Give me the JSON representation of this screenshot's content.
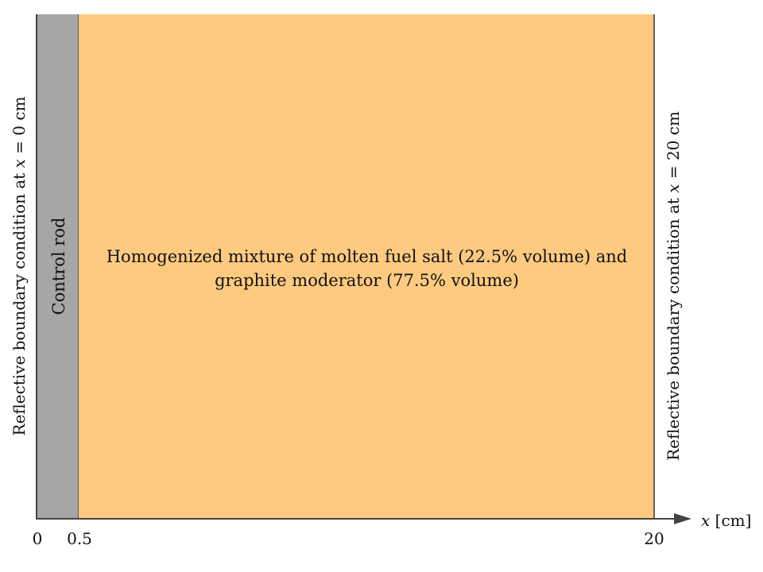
{
  "diagram": {
    "regions": [
      {
        "label": "Control rod",
        "x_start": 0,
        "x_end": 0.5,
        "color": "#a6a6a6"
      },
      {
        "label_line1": "Homogenized mixture of molten fuel salt (22.5% volume) and",
        "label_line2": "graphite moderator (77.5% volume)",
        "x_start": 0.5,
        "x_end": 20,
        "color": "#fdca7f"
      }
    ],
    "left_boundary": {
      "prefix": "Reflective boundary condition at ",
      "var": "x",
      "suffix": " = 0 cm"
    },
    "right_boundary": {
      "prefix": "Reflective boundary condition at ",
      "var": "x",
      "suffix": " = 20 cm"
    },
    "axis": {
      "var": "x",
      "unit": " [cm]",
      "ticks": [
        "0",
        "0.5",
        "20"
      ]
    }
  }
}
